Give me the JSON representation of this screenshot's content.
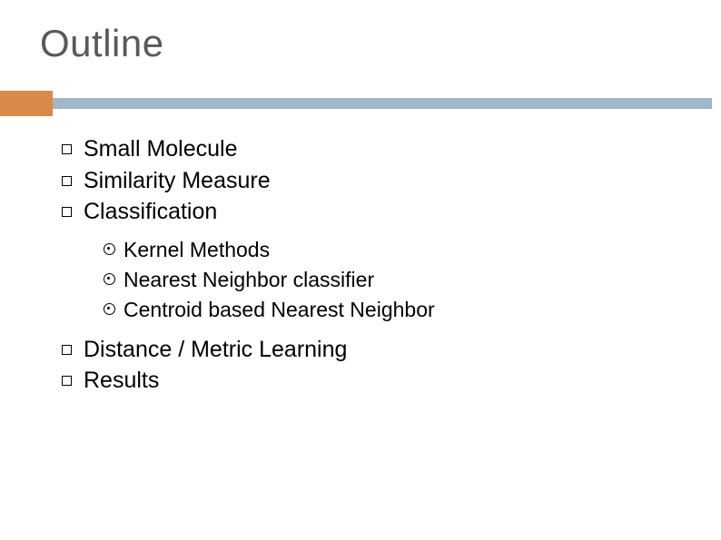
{
  "slide": {
    "title": "Outline",
    "title_color": "#595959",
    "title_fontsize": 42,
    "rule": {
      "orange_color": "#d88a4a",
      "orange_width": 58,
      "orange_height": 28,
      "blue_color": "#9fb7c9",
      "blue_height": 12
    },
    "body_fontsize_lvl1": 25,
    "body_fontsize_lvl2": 23,
    "bullets": [
      {
        "label": "Small Molecule"
      },
      {
        "label": "Similarity Measure"
      },
      {
        "label": "Classification",
        "children": [
          {
            "label": "Kernel Methods"
          },
          {
            "label": "Nearest Neighbor classifier"
          },
          {
            "label": "Centroid based Nearest Neighbor"
          }
        ]
      },
      {
        "label": "Distance / Metric Learning"
      },
      {
        "label": "Results"
      }
    ],
    "background_color": "#ffffff"
  }
}
